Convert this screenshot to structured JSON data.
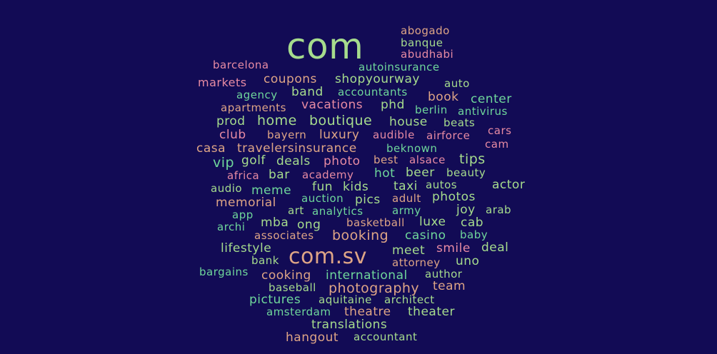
{
  "words": [
    {
      "text": "com",
      "color": "c1"
    },
    {
      "text": "abogado",
      "color": "c2"
    },
    {
      "text": "banque",
      "color": "c1"
    },
    {
      "text": "abudhabi",
      "color": "c4"
    },
    {
      "text": "barcelona",
      "color": "c4"
    },
    {
      "text": "autoinsurance",
      "color": "c3"
    },
    {
      "text": "markets",
      "color": "c4"
    },
    {
      "text": "coupons",
      "color": "c2"
    },
    {
      "text": "shopyourway",
      "color": "c1"
    },
    {
      "text": "auto",
      "color": "c1"
    },
    {
      "text": "agency",
      "color": "c3"
    },
    {
      "text": "band",
      "color": "c1"
    },
    {
      "text": "accountants",
      "color": "c3"
    },
    {
      "text": "book",
      "color": "c2"
    },
    {
      "text": "center",
      "color": "c3"
    },
    {
      "text": "apartments",
      "color": "c2"
    },
    {
      "text": "vacations",
      "color": "c4"
    },
    {
      "text": "phd",
      "color": "c1"
    },
    {
      "text": "berlin",
      "color": "c3"
    },
    {
      "text": "antivirus",
      "color": "c3"
    },
    {
      "text": "prod",
      "color": "c1"
    },
    {
      "text": "home",
      "color": "c1"
    },
    {
      "text": "boutique",
      "color": "c1"
    },
    {
      "text": "house",
      "color": "c1"
    },
    {
      "text": "beats",
      "color": "c1"
    },
    {
      "text": "club",
      "color": "c4"
    },
    {
      "text": "bayern",
      "color": "c2"
    },
    {
      "text": "luxury",
      "color": "c2"
    },
    {
      "text": "audible",
      "color": "c4"
    },
    {
      "text": "airforce",
      "color": "c4"
    },
    {
      "text": "cars",
      "color": "c4"
    },
    {
      "text": "casa",
      "color": "c2"
    },
    {
      "text": "travelersinsurance",
      "color": "c2"
    },
    {
      "text": "beknown",
      "color": "c3"
    },
    {
      "text": "cam",
      "color": "c4"
    },
    {
      "text": "vip",
      "color": "c3"
    },
    {
      "text": "golf",
      "color": "c1"
    },
    {
      "text": "deals",
      "color": "c1"
    },
    {
      "text": "photo",
      "color": "c4"
    },
    {
      "text": "best",
      "color": "c2"
    },
    {
      "text": "alsace",
      "color": "c4"
    },
    {
      "text": "tips",
      "color": "c1"
    },
    {
      "text": "africa",
      "color": "c4"
    },
    {
      "text": "bar",
      "color": "c1"
    },
    {
      "text": "academy",
      "color": "c4"
    },
    {
      "text": "hot",
      "color": "c3"
    },
    {
      "text": "beer",
      "color": "c1"
    },
    {
      "text": "beauty",
      "color": "c1"
    },
    {
      "text": "audio",
      "color": "c1"
    },
    {
      "text": "meme",
      "color": "c3"
    },
    {
      "text": "fun",
      "color": "c1"
    },
    {
      "text": "kids",
      "color": "c1"
    },
    {
      "text": "taxi",
      "color": "c1"
    },
    {
      "text": "autos",
      "color": "c1"
    },
    {
      "text": "actor",
      "color": "c1"
    },
    {
      "text": "auction",
      "color": "c3"
    },
    {
      "text": "memorial",
      "color": "c2"
    },
    {
      "text": "pics",
      "color": "c1"
    },
    {
      "text": "adult",
      "color": "c2"
    },
    {
      "text": "photos",
      "color": "c1"
    },
    {
      "text": "art",
      "color": "c1"
    },
    {
      "text": "analytics",
      "color": "c3"
    },
    {
      "text": "army",
      "color": "c3"
    },
    {
      "text": "joy",
      "color": "c1"
    },
    {
      "text": "arab",
      "color": "c1"
    },
    {
      "text": "app",
      "color": "c3"
    },
    {
      "text": "mba",
      "color": "c1"
    },
    {
      "text": "ong",
      "color": "c1"
    },
    {
      "text": "basketball",
      "color": "c2"
    },
    {
      "text": "luxe",
      "color": "c1"
    },
    {
      "text": "cab",
      "color": "c1"
    },
    {
      "text": "archi",
      "color": "c3"
    },
    {
      "text": "associates",
      "color": "c2"
    },
    {
      "text": "booking",
      "color": "c2"
    },
    {
      "text": "casino",
      "color": "c3"
    },
    {
      "text": "baby",
      "color": "c3"
    },
    {
      "text": "lifestyle",
      "color": "c1"
    },
    {
      "text": "com.sv",
      "color": "c2"
    },
    {
      "text": "meet",
      "color": "c1"
    },
    {
      "text": "smile",
      "color": "c4"
    },
    {
      "text": "deal",
      "color": "c1"
    },
    {
      "text": "bank",
      "color": "c1"
    },
    {
      "text": "attorney",
      "color": "c2"
    },
    {
      "text": "uno",
      "color": "c1"
    },
    {
      "text": "bargains",
      "color": "c3"
    },
    {
      "text": "cooking",
      "color": "c2"
    },
    {
      "text": "international",
      "color": "c3"
    },
    {
      "text": "author",
      "color": "c1"
    },
    {
      "text": "baseball",
      "color": "c1"
    },
    {
      "text": "photography",
      "color": "c2"
    },
    {
      "text": "team",
      "color": "c2"
    },
    {
      "text": "pictures",
      "color": "c3"
    },
    {
      "text": "aquitaine",
      "color": "c1"
    },
    {
      "text": "architect",
      "color": "c1"
    },
    {
      "text": "amsterdam",
      "color": "c3"
    },
    {
      "text": "theatre",
      "color": "c2"
    },
    {
      "text": "theater",
      "color": "c1"
    },
    {
      "text": "translations",
      "color": "c1"
    },
    {
      "text": "hangout",
      "color": "c2"
    },
    {
      "text": "accountant",
      "color": "c1"
    }
  ]
}
